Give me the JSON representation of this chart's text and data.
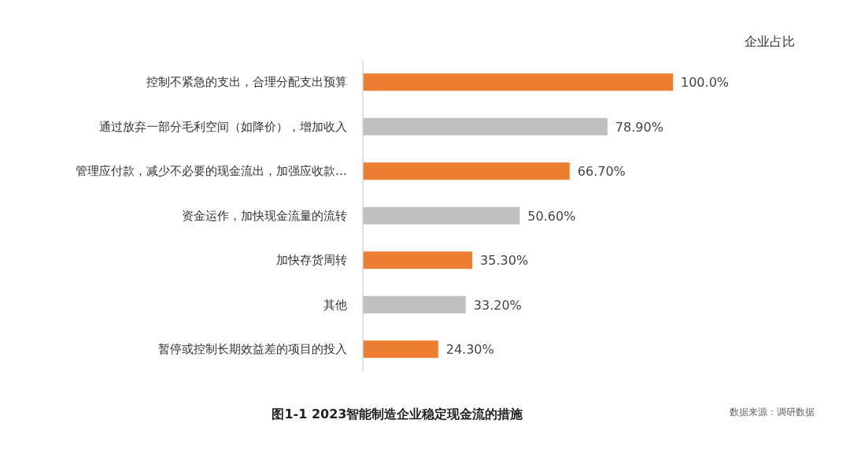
{
  "chart_data": {
    "type": "bar",
    "orientation": "horizontal",
    "title": "图1-1 2023智能制造企业稳定现金流的措施",
    "categories": [
      "控制不紧急的支出，合理分配支出预算",
      "通过放弃一部分毛利空间（如降价），增加收入",
      "管理应付款，减少不必要的现金流出，加强应收款…",
      "资金运作，加快现金流量的流转",
      "加快存货周转",
      "其他",
      "暂停或控制长期效益差的项目的投入"
    ],
    "values": [
      100.0,
      78.9,
      66.7,
      50.6,
      35.3,
      33.2,
      24.3
    ],
    "colors": [
      "#ed7d31",
      "#bfbfbf",
      "#ed7d31",
      "#bfbfbf",
      "#ed7d31",
      "#bfbfbf",
      "#ed7d31"
    ],
    "value_labels": [
      "100.0%",
      "78.90%",
      "66.70%",
      "50.60%",
      "35.30%",
      "33.20%",
      "24.30%"
    ],
    "annotations": [
      "企业占比",
      "数据来源：调研数据"
    ]
  }
}
